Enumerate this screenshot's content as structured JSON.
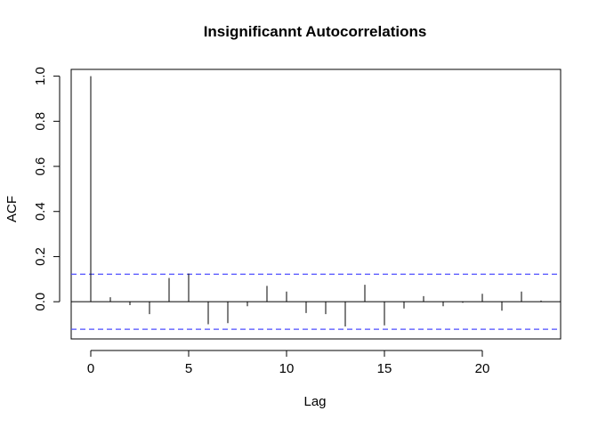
{
  "chart_data": {
    "type": "bar",
    "title": "Insignificannt Autocorrelations",
    "xlabel": "Lag",
    "ylabel": "ACF",
    "xlim": [
      -1,
      24
    ],
    "ylim": [
      -0.165,
      1.03
    ],
    "xticks": [
      0,
      5,
      10,
      15,
      20
    ],
    "yticks": [
      0.0,
      0.2,
      0.4,
      0.6,
      0.8,
      1.0
    ],
    "ytick_labels": [
      "0.0",
      "0.2",
      "0.4",
      "0.6",
      "0.8",
      "1.0"
    ],
    "lags": [
      0,
      1,
      2,
      3,
      4,
      5,
      6,
      7,
      8,
      9,
      10,
      11,
      12,
      13,
      14,
      15,
      16,
      17,
      18,
      19,
      20,
      21,
      22,
      23
    ],
    "acf": [
      1.0,
      0.02,
      -0.015,
      -0.055,
      0.105,
      0.125,
      -0.1,
      -0.095,
      -0.02,
      0.07,
      0.045,
      -0.05,
      -0.055,
      -0.11,
      0.075,
      -0.105,
      -0.03,
      0.025,
      -0.02,
      -0.005,
      0.035,
      -0.04,
      0.045,
      0.005
    ],
    "confidence_bound": 0.122,
    "colors": {
      "bars": "#000000",
      "confidence": "#4d4dff",
      "axes": "#000000"
    }
  }
}
